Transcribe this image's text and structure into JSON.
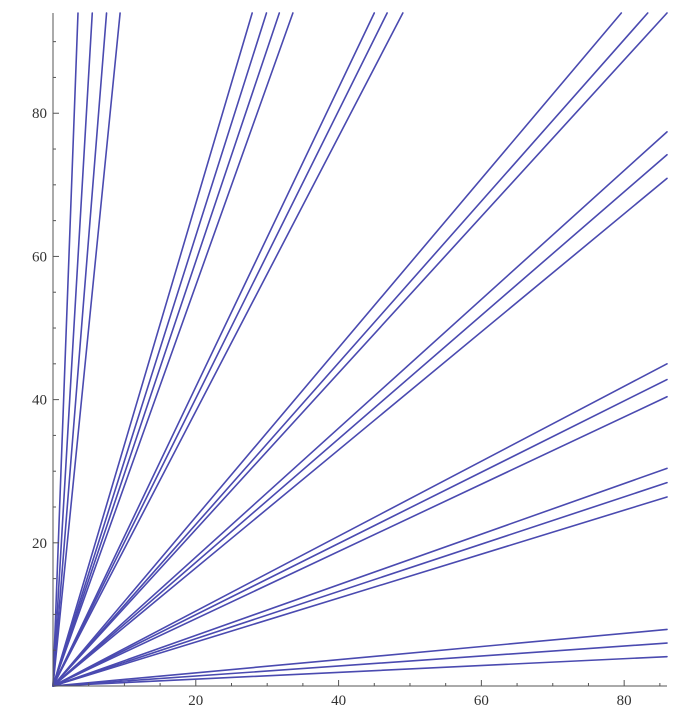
{
  "chart_data": {
    "type": "line",
    "title": "",
    "xlabel": "",
    "ylabel": "",
    "xlim": [
      0,
      86
    ],
    "ylim": [
      0,
      94
    ],
    "grid": false,
    "line_color": "#4a4ab0",
    "axis_color": "#555555",
    "x_ticks": [
      {
        "value": 20,
        "label": "20"
      },
      {
        "value": 40,
        "label": "40"
      },
      {
        "value": 60,
        "label": "60"
      },
      {
        "value": 80,
        "label": "80"
      }
    ],
    "y_ticks": [
      {
        "value": 20,
        "label": "20"
      },
      {
        "value": 40,
        "label": "40"
      },
      {
        "value": 60,
        "label": "60"
      },
      {
        "value": 80,
        "label": "80"
      }
    ],
    "series": [
      {
        "x": [
          0,
          86
        ],
        "y": [
          0,
          4.1
        ]
      },
      {
        "x": [
          0,
          86
        ],
        "y": [
          0,
          6.0
        ]
      },
      {
        "x": [
          0,
          86
        ],
        "y": [
          0,
          7.9
        ]
      },
      {
        "x": [
          0,
          86
        ],
        "y": [
          0,
          26.4
        ]
      },
      {
        "x": [
          0,
          86
        ],
        "y": [
          0,
          28.4
        ]
      },
      {
        "x": [
          0,
          86
        ],
        "y": [
          0,
          30.4
        ]
      },
      {
        "x": [
          0,
          86
        ],
        "y": [
          0,
          40.4
        ]
      },
      {
        "x": [
          0,
          86
        ],
        "y": [
          0,
          42.8
        ]
      },
      {
        "x": [
          0,
          86
        ],
        "y": [
          0,
          45.0
        ]
      },
      {
        "x": [
          0,
          86
        ],
        "y": [
          0,
          70.9
        ]
      },
      {
        "x": [
          0,
          86
        ],
        "y": [
          0,
          74.2
        ]
      },
      {
        "x": [
          0,
          86
        ],
        "y": [
          0,
          77.4
        ]
      },
      {
        "x": [
          0,
          86
        ],
        "y": [
          0,
          94.0
        ]
      },
      {
        "x": [
          0,
          83.3
        ],
        "y": [
          0,
          94.0
        ]
      },
      {
        "x": [
          0,
          79.6
        ],
        "y": [
          0,
          94.0
        ]
      },
      {
        "x": [
          0,
          49.0
        ],
        "y": [
          0,
          94.0
        ]
      },
      {
        "x": [
          0,
          46.8
        ],
        "y": [
          0,
          94.0
        ]
      },
      {
        "x": [
          0,
          45.0
        ],
        "y": [
          0,
          94.0
        ]
      },
      {
        "x": [
          0,
          33.6
        ],
        "y": [
          0,
          94.0
        ]
      },
      {
        "x": [
          0,
          31.7
        ],
        "y": [
          0,
          94.0
        ]
      },
      {
        "x": [
          0,
          29.9
        ],
        "y": [
          0,
          94.0
        ]
      },
      {
        "x": [
          0,
          27.9
        ],
        "y": [
          0,
          94.0
        ]
      },
      {
        "x": [
          0,
          9.4
        ],
        "y": [
          0,
          94.0
        ]
      },
      {
        "x": [
          0,
          7.5
        ],
        "y": [
          0,
          94.0
        ]
      },
      {
        "x": [
          0,
          5.5
        ],
        "y": [
          0,
          94.0
        ]
      },
      {
        "x": [
          0,
          3.5
        ],
        "y": [
          0,
          94.0
        ]
      }
    ]
  }
}
